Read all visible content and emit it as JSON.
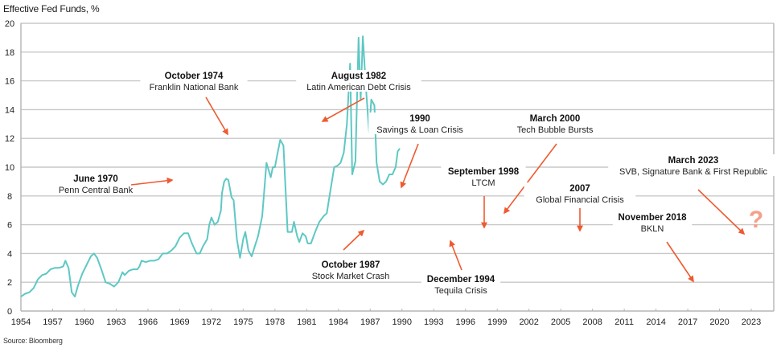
{
  "chart_data": {
    "type": "line",
    "title": "Effective Fed Funds, %",
    "xlabel": "",
    "ylabel": "Effective Fed Funds, %",
    "source": "Source: Bloomberg",
    "xlim": [
      1954,
      2025.5
    ],
    "ylim": [
      0,
      20
    ],
    "grid": true,
    "x_ticks": [
      "1954",
      "1957",
      "1960",
      "1963",
      "1966",
      "1969",
      "1972",
      "1975",
      "1978",
      "1981",
      "1984",
      "1987",
      "1990",
      "1993",
      "1996",
      "1999",
      "2002",
      "2005",
      "2008",
      "2011",
      "2014",
      "2017",
      "2020",
      "2023"
    ],
    "y_ticks": [
      "0",
      "2",
      "4",
      "6",
      "8",
      "10",
      "12",
      "14",
      "16",
      "18",
      "20"
    ],
    "colors": {
      "line": "#5ec8c4",
      "arrow": "#ee5a2f",
      "grid": "#c8c8c8",
      "axis": "#b5b5b5",
      "question": "#f4a08a"
    },
    "series": [
      {
        "name": "Effective Fed Funds Rate",
        "points": [
          [
            1954.0,
            1.0
          ],
          [
            1954.4,
            1.2
          ],
          [
            1954.8,
            1.3
          ],
          [
            1955.2,
            1.6
          ],
          [
            1955.6,
            2.2
          ],
          [
            1956.0,
            2.5
          ],
          [
            1956.4,
            2.6
          ],
          [
            1956.8,
            2.9
          ],
          [
            1957.2,
            3.0
          ],
          [
            1957.6,
            3.0
          ],
          [
            1958.0,
            3.1
          ],
          [
            1958.2,
            3.5
          ],
          [
            1958.5,
            3.0
          ],
          [
            1958.8,
            1.3
          ],
          [
            1959.1,
            1.0
          ],
          [
            1959.4,
            1.8
          ],
          [
            1959.8,
            2.6
          ],
          [
            1960.2,
            3.2
          ],
          [
            1960.6,
            3.8
          ],
          [
            1960.9,
            4.0
          ],
          [
            1961.2,
            3.7
          ],
          [
            1961.6,
            2.9
          ],
          [
            1962.0,
            2.0
          ],
          [
            1962.4,
            1.9
          ],
          [
            1962.8,
            1.7
          ],
          [
            1963.2,
            2.0
          ],
          [
            1963.6,
            2.7
          ],
          [
            1963.8,
            2.5
          ],
          [
            1964.2,
            2.8
          ],
          [
            1964.6,
            2.9
          ],
          [
            1965.0,
            2.9
          ],
          [
            1965.2,
            3.1
          ],
          [
            1965.4,
            3.5
          ],
          [
            1965.8,
            3.4
          ],
          [
            1966.2,
            3.5
          ],
          [
            1966.6,
            3.5
          ],
          [
            1967.0,
            3.6
          ],
          [
            1967.4,
            4.0
          ],
          [
            1967.8,
            4.0
          ],
          [
            1968.2,
            4.2
          ],
          [
            1968.6,
            4.5
          ],
          [
            1969.0,
            5.1
          ],
          [
            1969.4,
            5.4
          ],
          [
            1969.8,
            5.4
          ],
          [
            1970.1,
            4.8
          ],
          [
            1970.4,
            4.3
          ],
          [
            1970.6,
            4.0
          ],
          [
            1970.9,
            4.0
          ],
          [
            1971.2,
            4.5
          ],
          [
            1971.6,
            5.0
          ],
          [
            1971.8,
            6.0
          ],
          [
            1972.0,
            6.5
          ],
          [
            1972.3,
            6.0
          ],
          [
            1972.6,
            6.2
          ],
          [
            1972.9,
            7.0
          ],
          [
            1973.0,
            8.2
          ],
          [
            1973.2,
            9.0
          ],
          [
            1973.4,
            9.2
          ],
          [
            1973.6,
            9.1
          ],
          [
            1973.9,
            7.9
          ],
          [
            1974.1,
            7.7
          ],
          [
            1974.4,
            5.0
          ],
          [
            1974.7,
            3.7
          ],
          [
            1975.0,
            5.0
          ],
          [
            1975.2,
            5.5
          ],
          [
            1975.5,
            4.2
          ],
          [
            1975.8,
            3.8
          ],
          [
            1976.1,
            4.5
          ],
          [
            1976.4,
            5.2
          ],
          [
            1976.8,
            6.6
          ],
          [
            1977.2,
            10.3
          ],
          [
            1977.6,
            9.3
          ],
          [
            1977.8,
            10.0
          ],
          [
            1978.0,
            10.0
          ],
          [
            1978.2,
            10.8
          ],
          [
            1978.5,
            11.9
          ],
          [
            1978.8,
            11.5
          ],
          [
            1979.2,
            5.5
          ],
          [
            1979.6,
            5.5
          ],
          [
            1979.8,
            6.2
          ],
          [
            1980.1,
            5.2
          ],
          [
            1980.3,
            4.8
          ],
          [
            1980.6,
            5.4
          ],
          [
            1980.9,
            5.2
          ],
          [
            1981.1,
            4.7
          ],
          [
            1981.4,
            4.7
          ],
          [
            1981.8,
            5.5
          ],
          [
            1982.2,
            6.2
          ],
          [
            1982.6,
            6.6
          ],
          [
            1982.9,
            6.8
          ],
          [
            1983.2,
            8.2
          ],
          [
            1983.6,
            10.0
          ],
          [
            1983.9,
            10.1
          ],
          [
            1984.2,
            10.3
          ],
          [
            1984.5,
            11.0
          ],
          [
            1984.8,
            13.0
          ],
          [
            1985.1,
            17.2
          ],
          [
            1985.3,
            9.5
          ],
          [
            1985.6,
            10.4
          ],
          [
            1985.9,
            19.0
          ],
          [
            1986.1,
            14.7
          ],
          [
            1986.3,
            19.1
          ],
          [
            1986.6,
            15.5
          ],
          [
            1986.9,
            12.4
          ],
          [
            1987.1,
            14.7
          ],
          [
            1987.4,
            14.3
          ],
          [
            1987.6,
            10.3
          ],
          [
            1987.9,
            9.0
          ],
          [
            1988.2,
            8.8
          ],
          [
            1988.5,
            9.0
          ],
          [
            1988.8,
            9.5
          ],
          [
            1989.1,
            9.5
          ],
          [
            1989.4,
            10.0
          ],
          [
            1989.6,
            11.1
          ],
          [
            1989.8,
            11.3
          ]
        ]
      }
    ],
    "annotations": [
      {
        "title": "June 1970",
        "subtitle": "Penn Central Bank",
        "event_year": 1970.5,
        "event_value": 9.1
      },
      {
        "title": "October 1974",
        "subtitle": "Franklin National Bank",
        "event_year": 1974.8,
        "event_value": 12.0
      },
      {
        "title": "August 1982",
        "subtitle": "Latin American Debt Crisis",
        "event_year": 1982.6,
        "event_value": 13.0
      },
      {
        "title": "October 1987",
        "subtitle": "Stock Market Crash",
        "event_year": 1987.8,
        "event_value": 5.7
      },
      {
        "title": "1990",
        "subtitle": "Savings & Loan Crisis",
        "event_year": 1990.2,
        "event_value": 8.2
      },
      {
        "title": "December 1994",
        "subtitle": "Tequila Crisis",
        "event_year": 1994.9,
        "event_value": 5.6
      },
      {
        "title": "September 1998",
        "subtitle": "LTCM",
        "event_year": 1998.7,
        "event_value": 5.5
      },
      {
        "title": "March 2000",
        "subtitle": "Tech Bubble Bursts",
        "event_year": 2000.2,
        "event_value": 6.5
      },
      {
        "title": "2007",
        "subtitle": "Global Financial Crisis",
        "event_year": 2007.0,
        "event_value": 5.3
      },
      {
        "title": "November 2018",
        "subtitle": "BKLN",
        "event_year": 2018.9,
        "event_value": 2.2
      },
      {
        "title": "March 2023",
        "subtitle": "SVB, Signature Bank & First Republic",
        "event_year": 2023.2,
        "event_value": 5.3
      }
    ],
    "question_mark": "?"
  }
}
